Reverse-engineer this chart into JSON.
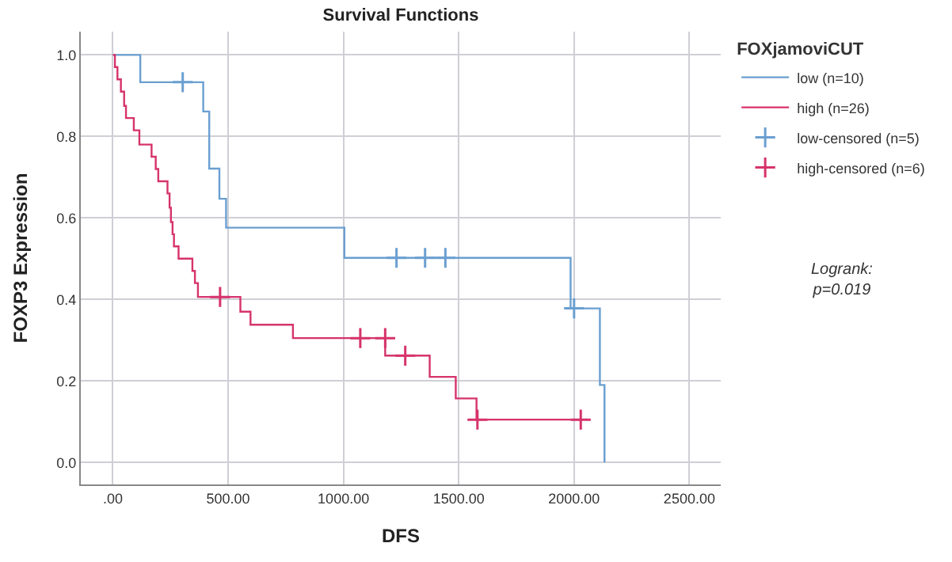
{
  "chart_data": {
    "type": "step",
    "title": "Survival Functions",
    "xlabel": "DFS",
    "ylabel": "FOXP3 Expression",
    "legend_title": "FOXjamoviCUT",
    "legend": "top right",
    "grid": true,
    "line_style": "solid",
    "xlim": [
      -139,
      2636
    ],
    "ylim": [
      -0.054,
      1.057
    ],
    "xticks": [
      {
        "value": 0,
        "label": ".00"
      },
      {
        "value": 500,
        "label": "500.00"
      },
      {
        "value": 1000,
        "label": "1000.00"
      },
      {
        "value": 1500,
        "label": "1500.00"
      },
      {
        "value": 2000,
        "label": "2000.00"
      },
      {
        "value": 2500,
        "label": "2500.00"
      }
    ],
    "yticks": [
      {
        "value": 0,
        "label": "0.0"
      },
      {
        "value": 0.2,
        "label": "0.2"
      },
      {
        "value": 0.4,
        "label": "0.4"
      },
      {
        "value": 0.6,
        "label": "0.6"
      },
      {
        "value": 0.8,
        "label": "0.8"
      },
      {
        "value": 1,
        "label": "1.0"
      }
    ],
    "series": [
      {
        "name": "low (n=10)",
        "color": "#6a9fd1",
        "x": [
          0,
          119,
          392,
          418,
          462,
          491,
          1004,
          1985,
          2112,
          2132
        ],
        "values": [
          1.0,
          0.933,
          0.861,
          0.721,
          0.647,
          0.576,
          0.502,
          0.378,
          0.19,
          0.0
        ]
      },
      {
        "name": "high (n=26)",
        "color": "#d6336b",
        "x": [
          0,
          9,
          20,
          35,
          49,
          57,
          91,
          115,
          168,
          186,
          197,
          237,
          246,
          252,
          259,
          265,
          285,
          345,
          356,
          369,
          553,
          597,
          781,
          1181,
          1374,
          1487,
          1577,
          2029
        ],
        "values": [
          1.0,
          0.97,
          0.94,
          0.91,
          0.875,
          0.845,
          0.815,
          0.78,
          0.75,
          0.72,
          0.69,
          0.66,
          0.625,
          0.59,
          0.56,
          0.53,
          0.5,
          0.47,
          0.44,
          0.406,
          0.37,
          0.338,
          0.305,
          0.262,
          0.21,
          0.157,
          0.105,
          0.105
        ]
      },
      {
        "name": "low-censored (n=5)",
        "type": "scatter",
        "marker": "cross",
        "color": "#6a9fd1",
        "x": [
          303,
          1230,
          1354,
          1442,
          2000
        ],
        "values": [
          0.933,
          0.502,
          0.502,
          0.502,
          0.378
        ]
      },
      {
        "name": "high-censored (n=6)",
        "type": "scatter",
        "marker": "cross",
        "color": "#d6336b",
        "x": [
          465,
          1073,
          1181,
          1268,
          1581,
          2029
        ],
        "values": [
          0.406,
          0.305,
          0.305,
          0.262,
          0.105,
          0.105
        ]
      }
    ],
    "annotations": [
      "Logrank:\np=0.019"
    ]
  }
}
